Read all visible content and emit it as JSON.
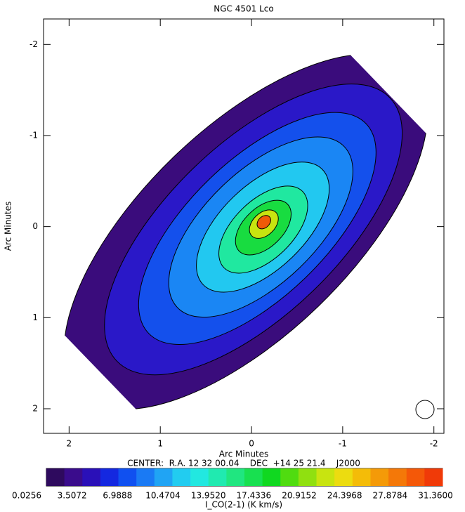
{
  "chart_data": {
    "type": "contour-map",
    "title": "NGC 4501 Lco",
    "x_label": "Arc Minutes",
    "y_label": "Arc Minutes",
    "center_label": "CENTER:  R.A. 12 32 00.04    DEC  +14 25 21.4    J2000",
    "xlim": [
      2.28,
      -2.11
    ],
    "xticks": [
      2,
      1,
      0,
      -1,
      -2
    ],
    "ylim": [
      2.27,
      -2.28
    ],
    "yticks": [
      -2,
      -1,
      0,
      1,
      2
    ],
    "colorbar_label": "I_CO(2-1)  (K km/s)",
    "colorbar_ticks": [
      0.0256,
      3.5072,
      6.9888,
      10.4704,
      {
        "value": 13.952,
        "label": "13.9520"
      },
      17.4336,
      20.9152,
      24.3968,
      27.8784,
      {
        "value": 31.36,
        "label": "31.3600"
      }
    ],
    "colormap": [
      "#2e0a5e",
      "#3a0c8c",
      "#2a10b8",
      "#1428e0",
      "#1050f0",
      "#1a7af4",
      "#20a4f4",
      "#22ccf0",
      "#22e8e0",
      "#20eab0",
      "#20e680",
      "#18e050",
      "#10d820",
      "#50dc10",
      "#90e010",
      "#c8e410",
      "#ecdc10",
      "#f4bc08",
      "#f49a08",
      "#f47808",
      "#f45808",
      "#f03a08"
    ]
  }
}
